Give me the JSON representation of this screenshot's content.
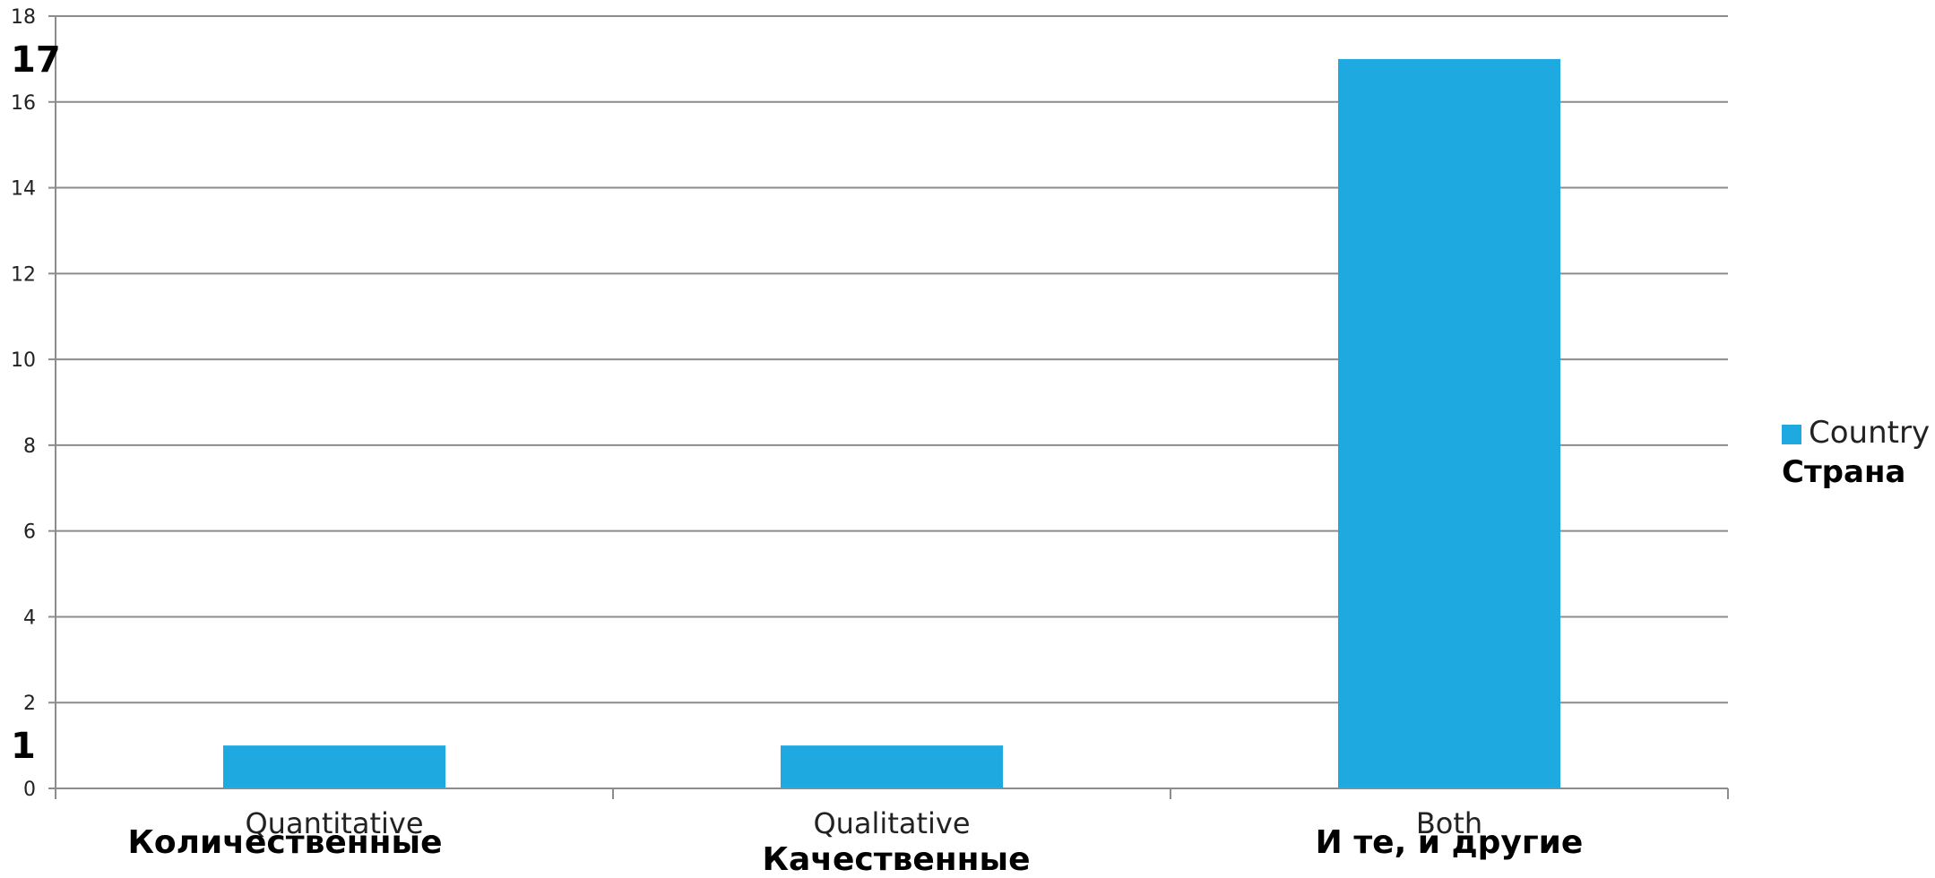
{
  "chart_data": {
    "type": "bar",
    "categories": [
      "Quantitative",
      "Qualitative",
      "Both"
    ],
    "categories_ru": [
      "Количественные",
      "Качественные",
      "И  те, и другие"
    ],
    "series": [
      {
        "name": "Country",
        "name_ru": "Страна",
        "color": "#1EA9E1",
        "values": [
          1,
          1,
          17
        ]
      }
    ],
    "ylim": [
      0,
      18
    ],
    "yticks": [
      0,
      2,
      4,
      6,
      8,
      10,
      12,
      14,
      16,
      18
    ],
    "highlighted_values": [
      {
        "label": "17",
        "value": 17
      },
      {
        "label": "1",
        "value": 1
      }
    ],
    "grid": true,
    "legend_position": "right",
    "colors": {
      "grid": "#8C8C8C",
      "axis": "#8C8C8C"
    }
  }
}
